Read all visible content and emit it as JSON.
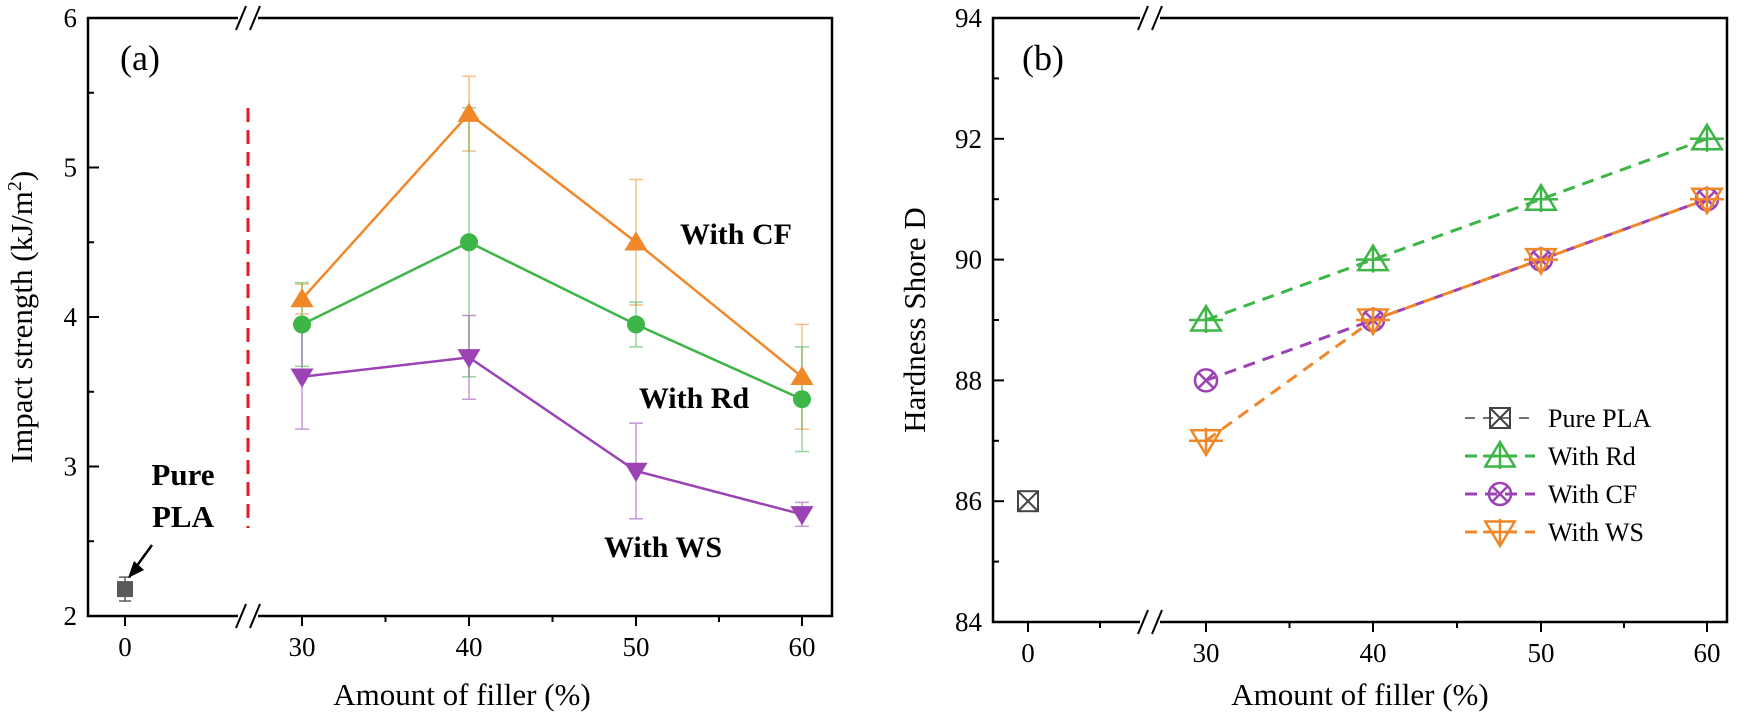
{
  "figure": {
    "colors": {
      "cf_orange": "#f0882a",
      "rd_green": "#3db547",
      "ws_purple": "#9b43b5",
      "pure_gray": "#595959",
      "divider_red": "#e8192c",
      "axis": "#000000"
    }
  },
  "chart_data": [
    {
      "panel": "(a)",
      "type": "line",
      "xlabel": "Amount of filler (%)",
      "ylabel_main": "Impact strength (kJ/m",
      "ylabel_sup": "2",
      "ylabel_end": ")",
      "x_break": true,
      "ylim": [
        2,
        6
      ],
      "yticks": [
        2,
        3,
        4,
        5,
        6
      ],
      "xticks": [
        0,
        30,
        40,
        50,
        60
      ],
      "x": [
        30,
        40,
        50,
        60
      ],
      "pure": {
        "name_line1": "Pure",
        "name_line2": "PLA",
        "x": 0,
        "y": 2.18,
        "err": 0.08
      },
      "series": [
        {
          "name": "With CF",
          "color": "#f0882a",
          "marker": "triangle-up",
          "values": [
            4.12,
            5.36,
            4.5,
            3.6
          ],
          "errors": [
            0.1,
            0.25,
            0.42,
            0.35
          ]
        },
        {
          "name": "With Rd",
          "color": "#3db547",
          "marker": "circle",
          "values": [
            3.95,
            4.5,
            3.95,
            3.45
          ],
          "errors": [
            0.28,
            0.9,
            0.15,
            0.35
          ]
        },
        {
          "name": "With WS",
          "color": "#9b43b5",
          "marker": "triangle-down",
          "values": [
            3.6,
            3.73,
            2.97,
            2.68
          ],
          "errors": [
            0.35,
            0.28,
            0.32,
            0.08
          ]
        }
      ]
    },
    {
      "panel": "(b)",
      "type": "line",
      "xlabel": "Amount of filler (%)",
      "ylabel": "Hardness Shore D",
      "x_break": true,
      "ylim": [
        84,
        94
      ],
      "yticks": [
        84,
        86,
        88,
        90,
        92,
        94
      ],
      "xticks": [
        0,
        30,
        40,
        50,
        60
      ],
      "x": [
        30,
        40,
        50,
        60
      ],
      "pure": {
        "name": "Pure PLA",
        "x": 0,
        "y": 86
      },
      "series": [
        {
          "name": "With Rd",
          "color": "#3db547",
          "marker": "triangle-up-open",
          "values": [
            89,
            90,
            91,
            92
          ]
        },
        {
          "name": "With CF",
          "color": "#9b43b5",
          "marker": "circle-x-open",
          "values": [
            88,
            89,
            90,
            91
          ]
        },
        {
          "name": "With WS",
          "color": "#f0882a",
          "marker": "triangle-down-open",
          "values": [
            87,
            89,
            90,
            91
          ]
        }
      ],
      "legend_position": "bottom-right"
    }
  ]
}
